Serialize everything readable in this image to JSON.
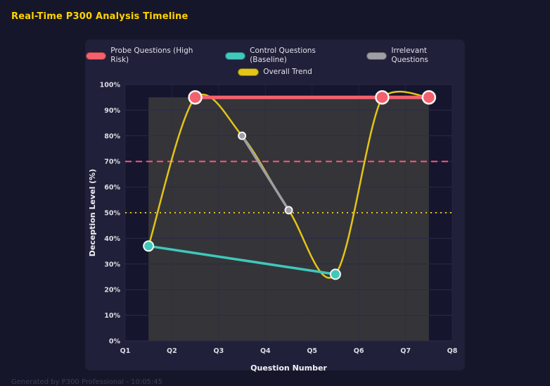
{
  "header": {
    "title": "Real-Time P300 Analysis Timeline"
  },
  "footer": {
    "text": "Generated by P300 Professional - 10:05:45"
  },
  "chart_data": {
    "type": "line",
    "title": "Real-Time P300 Analysis Timeline",
    "xlabel": "Question Number",
    "ylabel": "Deception Level (%)",
    "x_ticks": [
      "Q1",
      "Q2",
      "Q3",
      "Q4",
      "Q5",
      "Q6",
      "Q7",
      "Q8"
    ],
    "x_range": [
      1,
      8
    ],
    "ylim": [
      0,
      100
    ],
    "y_tick_step": 10,
    "grid": true,
    "legend_position": "top",
    "colors": {
      "page_bg": "#16162b",
      "panel_bg": "#20203a",
      "plot_bg": "#15152e",
      "grid": "#2b2b48",
      "title": "#ffd400",
      "axis_text": "#e2e2ea"
    },
    "series": [
      {
        "name": "Probe Questions (High Risk)",
        "color": "#f4606c",
        "x": [
          2.5,
          6.5,
          7.5
        ],
        "values": [
          95,
          95,
          95
        ],
        "line_width": 5,
        "marker_radius": 9,
        "smooth": false
      },
      {
        "name": "Control Questions (Baseline)",
        "color": "#3fc8bc",
        "x": [
          1.5,
          5.5
        ],
        "values": [
          37,
          26
        ],
        "line_width": 3.5,
        "marker_radius": 7,
        "smooth": false
      },
      {
        "name": "Irrelevant Questions",
        "color": "#9e9ea6",
        "x": [
          3.5,
          4.5
        ],
        "values": [
          80,
          51
        ],
        "line_width": 3.5,
        "marker_radius": 5,
        "smooth": false
      },
      {
        "name": "Overall Trend",
        "color": "#e3c417",
        "x": [
          1.5,
          2.5,
          3.5,
          4.5,
          5.5,
          6.5,
          7.5
        ],
        "values": [
          37,
          95,
          80,
          51,
          26,
          95,
          95
        ],
        "line_width": 2.5,
        "marker_radius": 0,
        "smooth": true
      }
    ],
    "thresholds": [
      {
        "y": 70,
        "color": "#ff5577",
        "style": "dashed"
      },
      {
        "y": 50,
        "color": "#e3c417",
        "style": "dotted"
      }
    ],
    "shaded_region": {
      "x0": 1.5,
      "x1": 7.5,
      "y0": 0,
      "y1": 95,
      "color": "#a8a864",
      "opacity": 0.22
    }
  }
}
